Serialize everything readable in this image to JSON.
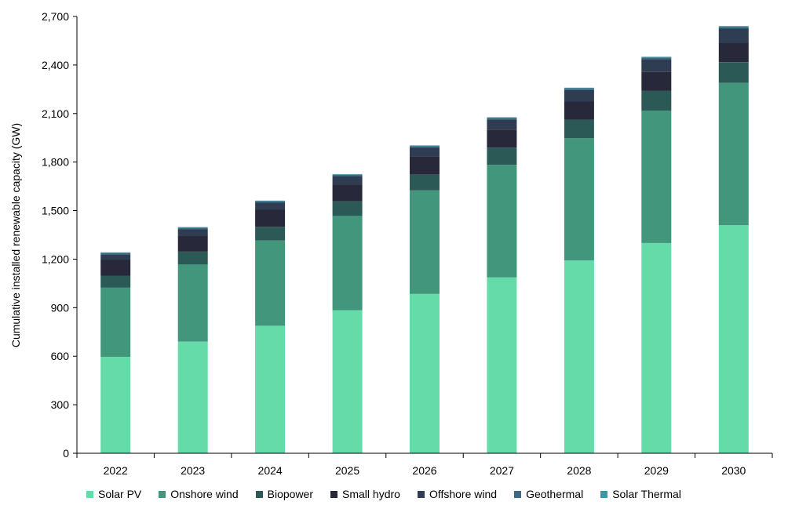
{
  "chart_data": {
    "type": "bar",
    "stacked": true,
    "ylabel": "Cumulative installed renewable capacity (GW)",
    "xlabel": "",
    "ylim": [
      0,
      2700
    ],
    "yticks": [
      0,
      300,
      600,
      900,
      1200,
      1500,
      1800,
      2100,
      2400,
      2700
    ],
    "ytick_labels": [
      "0",
      "300",
      "600",
      "900",
      "1,200",
      "1,500",
      "1,800",
      "2,100",
      "2,400",
      "2,700"
    ],
    "categories": [
      "2022",
      "2023",
      "2024",
      "2025",
      "2026",
      "2027",
      "2028",
      "2029",
      "2030"
    ],
    "legend_position": "bottom",
    "grid": false,
    "series": [
      {
        "name": "Solar PV",
        "color": "#64dba8",
        "values": [
          595,
          690,
          788,
          885,
          985,
          1088,
          1192,
          1300,
          1410
        ]
      },
      {
        "name": "Onshore wind",
        "color": "#42967c",
        "values": [
          430,
          478,
          527,
          582,
          640,
          695,
          755,
          818,
          880
        ]
      },
      {
        "name": "Biopower",
        "color": "#2b5a56",
        "values": [
          73,
          78,
          85,
          90,
          98,
          106,
          115,
          122,
          128
        ]
      },
      {
        "name": "Small hydro",
        "color": "#272839",
        "values": [
          97,
          100,
          105,
          105,
          112,
          112,
          112,
          117,
          117
        ]
      },
      {
        "name": "Offshore wind",
        "color": "#2e3d52",
        "values": [
          35,
          40,
          44,
          51,
          55,
          62,
          72,
          80,
          90
        ]
      },
      {
        "name": "Geothermal",
        "color": "#3c6a83",
        "values": [
          8,
          8,
          9,
          9,
          9,
          10,
          10,
          10,
          11
        ]
      },
      {
        "name": "Solar Thermal",
        "color": "#3d97a6",
        "values": [
          4,
          4,
          4,
          4,
          4,
          4,
          4,
          4,
          5
        ]
      }
    ]
  }
}
